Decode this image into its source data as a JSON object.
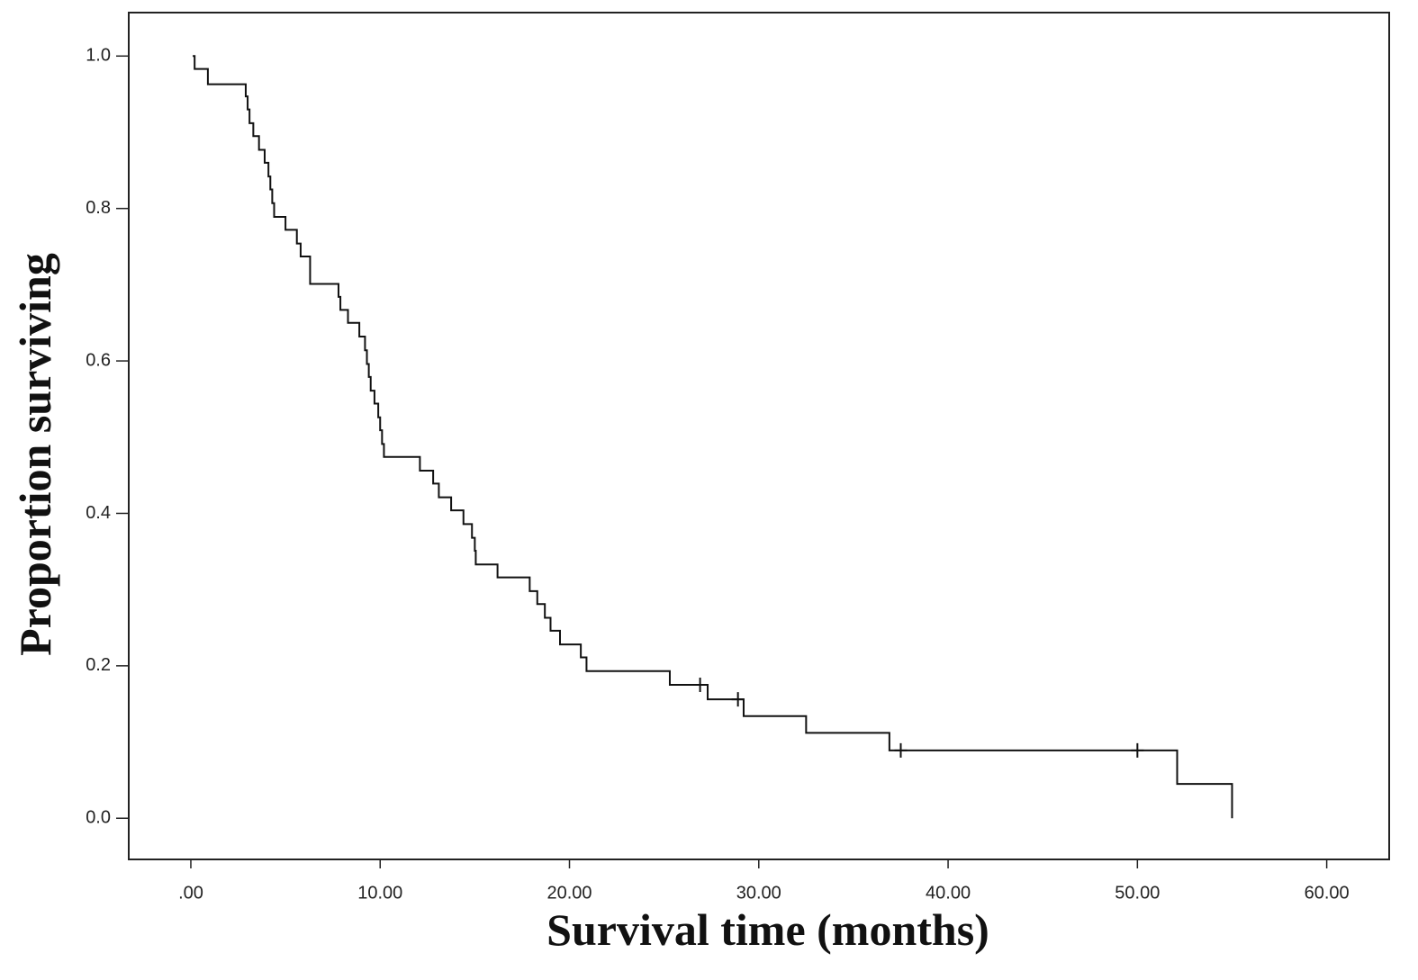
{
  "chart_data": {
    "type": "step",
    "xlabel": "Survival time (months)",
    "ylabel": "Proportion surviving",
    "xlim": [
      -3.28,
      63.3
    ],
    "ylim": [
      -0.054,
      1.057
    ],
    "xticks": [
      {
        "value": 0,
        "label": ".00"
      },
      {
        "value": 10,
        "label": "10.00"
      },
      {
        "value": 20,
        "label": "20.00"
      },
      {
        "value": 30,
        "label": "30.00"
      },
      {
        "value": 40,
        "label": "40.00"
      },
      {
        "value": 50,
        "label": "50.00"
      },
      {
        "value": 60,
        "label": "60.00"
      }
    ],
    "yticks": [
      {
        "value": 0,
        "label": "0.0"
      },
      0.2,
      0.4,
      0.6,
      0.8,
      {
        "value": 1,
        "label": "1.0"
      }
    ],
    "series": [
      {
        "color": "#111111",
        "x": [
          0.1,
          0.2,
          0.9,
          2.9,
          3.0,
          3.1,
          3.3,
          3.6,
          3.9,
          4.1,
          4.2,
          4.3,
          4.4,
          5.0,
          5.6,
          5.8,
          6.3,
          7.8,
          7.9,
          8.3,
          8.9,
          9.2,
          9.3,
          9.4,
          9.5,
          9.7,
          9.9,
          10.0,
          10.1,
          10.2,
          12.1,
          12.8,
          13.1,
          13.75,
          14.4,
          14.85,
          15.0,
          15.05,
          16.2,
          17.9,
          18.3,
          18.7,
          19.0,
          19.5,
          20.6,
          20.9,
          25.3,
          27.3,
          29.2,
          32.5,
          36.9,
          52.1,
          55.0
        ],
        "values": [
          1.0,
          0.983,
          0.963,
          0.947,
          0.93,
          0.912,
          0.895,
          0.877,
          0.86,
          0.842,
          0.825,
          0.807,
          0.789,
          0.772,
          0.754,
          0.737,
          0.701,
          0.684,
          0.667,
          0.65,
          0.632,
          0.614,
          0.596,
          0.579,
          0.561,
          0.544,
          0.526,
          0.509,
          0.491,
          0.474,
          0.456,
          0.439,
          0.421,
          0.404,
          0.386,
          0.368,
          0.351,
          0.333,
          0.316,
          0.298,
          0.281,
          0.263,
          0.246,
          0.228,
          0.211,
          0.193,
          0.175,
          0.156,
          0.134,
          0.112,
          0.089,
          0.045,
          0.0
        ]
      },
      {
        "color": "#111111",
        "marker": "+",
        "x": [
          26.9,
          28.9,
          37.5,
          50.0
        ],
        "values": [
          0.175,
          0.156,
          0.089,
          0.089
        ]
      }
    ]
  }
}
